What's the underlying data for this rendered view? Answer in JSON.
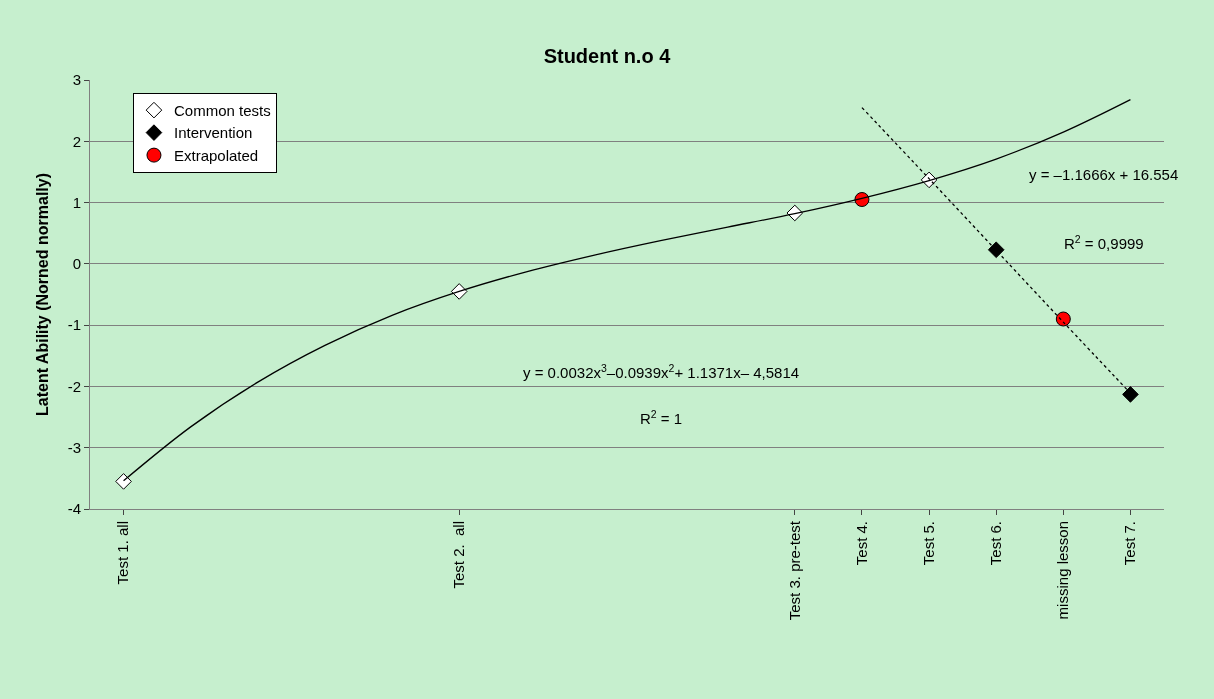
{
  "chart_data": {
    "type": "scatter",
    "title": "Student n.o 4",
    "ylabel": "Latent Ability (Norned normally)",
    "categories": [
      "Test 1. all",
      null,
      null,
      null,
      null,
      "Test 2.  all",
      null,
      null,
      null,
      null,
      "Test 3. pre-test",
      "Test 4.",
      "Test 5.",
      "Test 6.",
      "missing lesson",
      "Test 7."
    ],
    "series": [
      {
        "name": "Common tests",
        "color": "#ffffff",
        "marker": "diamond",
        "values": [
          -3.55,
          null,
          null,
          null,
          null,
          -0.45,
          null,
          null,
          null,
          null,
          0.83,
          null,
          1.37,
          null,
          null,
          null
        ]
      },
      {
        "name": "Intervention",
        "color": "#000000",
        "marker": "diamond",
        "values": [
          null,
          null,
          null,
          null,
          null,
          null,
          null,
          null,
          null,
          null,
          null,
          null,
          null,
          0.23,
          null,
          -2.13
        ]
      },
      {
        "name": "Extrapolated",
        "color": "#ff0000",
        "marker": "circle",
        "values": [
          null,
          null,
          null,
          null,
          null,
          null,
          null,
          null,
          null,
          null,
          null,
          1.05,
          null,
          null,
          -0.9,
          null
        ]
      },
      {
        "type": "line",
        "color": "#000000",
        "marker": "none",
        "line_style": "solid",
        "values": [
          -3.54,
          -2.66,
          -1.93,
          -1.33,
          -0.84,
          -0.45,
          -0.13,
          0.14,
          0.38,
          0.6,
          0.82,
          1.07,
          1.36,
          1.71,
          2.15,
          2.68
        ]
      },
      {
        "type": "line",
        "color": "#000000",
        "marker": "none",
        "line_style": "dotted",
        "values": [
          null,
          null,
          null,
          null,
          null,
          null,
          null,
          null,
          null,
          null,
          null,
          2.55,
          1.39,
          0.22,
          -0.95,
          -2.11
        ]
      }
    ],
    "ylim": [
      -4,
      3
    ],
    "yticks": [
      -4,
      -3,
      -2,
      -1,
      0,
      1,
      2,
      3
    ],
    "grid": "y",
    "legend": "top left",
    "annotations": [
      "y = 0.0032x$^{3}$–0.0939x$^{2}$+ 1.1371x– 4,5814",
      "R$^{2}$ = 1",
      "y = –1.1666x + 16.554",
      "R$^{2}$ = 0,9999"
    ]
  }
}
